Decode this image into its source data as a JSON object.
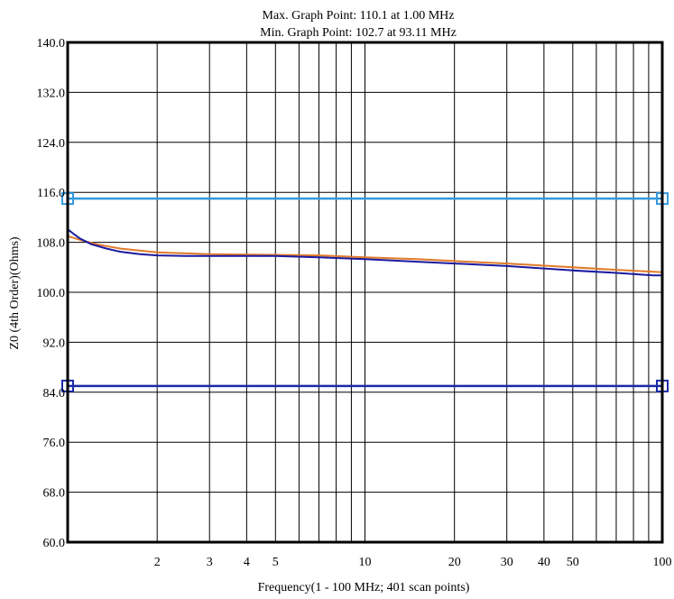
{
  "chart_data": {
    "type": "line",
    "title_lines": [
      "Max. Graph Point: 110.1 at 1.00 MHz",
      "Min. Graph Point: 102.7 at 93.11 MHz"
    ],
    "xlabel": "Frequency(1 - 100 MHz; 401 scan points)",
    "ylabel": "Z0 (4th Order)(Ohms)",
    "xscale": "log",
    "xlim": [
      1,
      100
    ],
    "ylim": [
      60,
      140
    ],
    "grid": true,
    "x_ticks": [
      {
        "value": 2,
        "label": "2"
      },
      {
        "value": 3,
        "label": "3"
      },
      {
        "value": 4,
        "label": "4"
      },
      {
        "value": 5,
        "label": "5"
      },
      {
        "value": 10,
        "label": "10"
      },
      {
        "value": 20,
        "label": "20"
      },
      {
        "value": 30,
        "label": "30"
      },
      {
        "value": 40,
        "label": "40"
      },
      {
        "value": 50,
        "label": "50"
      },
      {
        "value": 100,
        "label": "100"
      }
    ],
    "y_ticks": [
      {
        "value": 60,
        "label": "60.0"
      },
      {
        "value": 68,
        "label": "68.0"
      },
      {
        "value": 76,
        "label": "76.0"
      },
      {
        "value": 84,
        "label": "84.0"
      },
      {
        "value": 92,
        "label": "92.0"
      },
      {
        "value": 100,
        "label": "100.0"
      },
      {
        "value": 108,
        "label": "108.0"
      },
      {
        "value": 116,
        "label": "116.0"
      },
      {
        "value": 124,
        "label": "124.0"
      },
      {
        "value": 132,
        "label": "132.0"
      },
      {
        "value": 140,
        "label": "140.0"
      }
    ],
    "limits": [
      {
        "value": 115,
        "color": "#3399dd"
      },
      {
        "value": 85,
        "color": "#1a2aa8"
      }
    ],
    "series": [
      {
        "color": "#e07a2a",
        "x": [
          1,
          1.1,
          1.25,
          1.5,
          2,
          3,
          5,
          7,
          10,
          15,
          20,
          30,
          50,
          70,
          100
        ],
        "y": [
          109.0,
          108.4,
          107.7,
          107.0,
          106.4,
          106.1,
          106.0,
          105.9,
          105.6,
          105.3,
          105.0,
          104.6,
          104.0,
          103.6,
          103.2
        ]
      },
      {
        "color": "#1a1aa0",
        "x": [
          1,
          1.05,
          1.1,
          1.2,
          1.35,
          1.5,
          1.75,
          2,
          2.5,
          3,
          5,
          7,
          10,
          15,
          20,
          30,
          50,
          70,
          93.11,
          100
        ],
        "y": [
          110.1,
          109.3,
          108.6,
          107.7,
          107.0,
          106.5,
          106.1,
          105.9,
          105.8,
          105.8,
          105.8,
          105.6,
          105.3,
          104.9,
          104.6,
          104.2,
          103.5,
          103.1,
          102.7,
          102.7
        ]
      }
    ]
  }
}
